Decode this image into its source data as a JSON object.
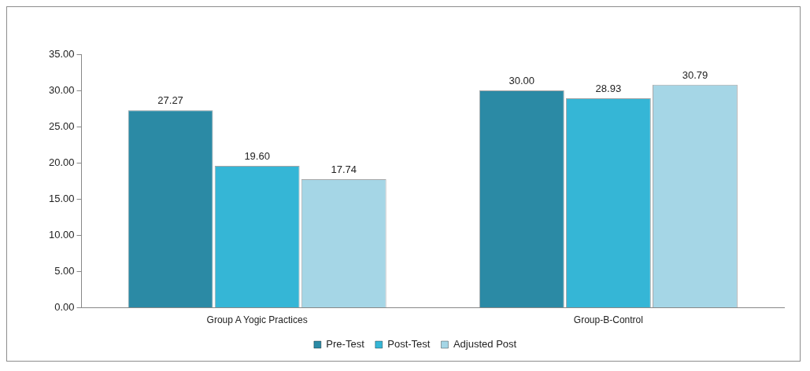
{
  "chart_data": {
    "type": "bar",
    "categories": [
      "Group A Yogic Practices",
      "Group-B-Control"
    ],
    "series": [
      {
        "name": "Pre-Test",
        "color": "#2b8aa5",
        "values": [
          27.27,
          30.0
        ],
        "value_labels": [
          "27.27",
          "30.00"
        ]
      },
      {
        "name": "Post-Test",
        "color": "#35b6d6",
        "values": [
          19.6,
          28.93
        ],
        "value_labels": [
          "19.60",
          "28.93"
        ]
      },
      {
        "name": "Adjusted Post",
        "color": "#a5d6e6",
        "values": [
          17.74,
          30.79
        ],
        "value_labels": [
          "17.74",
          "30.79"
        ]
      }
    ],
    "ylim": [
      0,
      35
    ],
    "yticks": [
      {
        "value": 0,
        "label": "0.00"
      },
      {
        "value": 5,
        "label": "5.00"
      },
      {
        "value": 10,
        "label": "10.00"
      },
      {
        "value": 15,
        "label": "15.00"
      },
      {
        "value": 20,
        "label": "20.00"
      },
      {
        "value": 25,
        "label": "25.00"
      },
      {
        "value": 30,
        "label": "30.00"
      },
      {
        "value": 35,
        "label": "35.00"
      }
    ],
    "grid": false,
    "legend": "bottom"
  }
}
